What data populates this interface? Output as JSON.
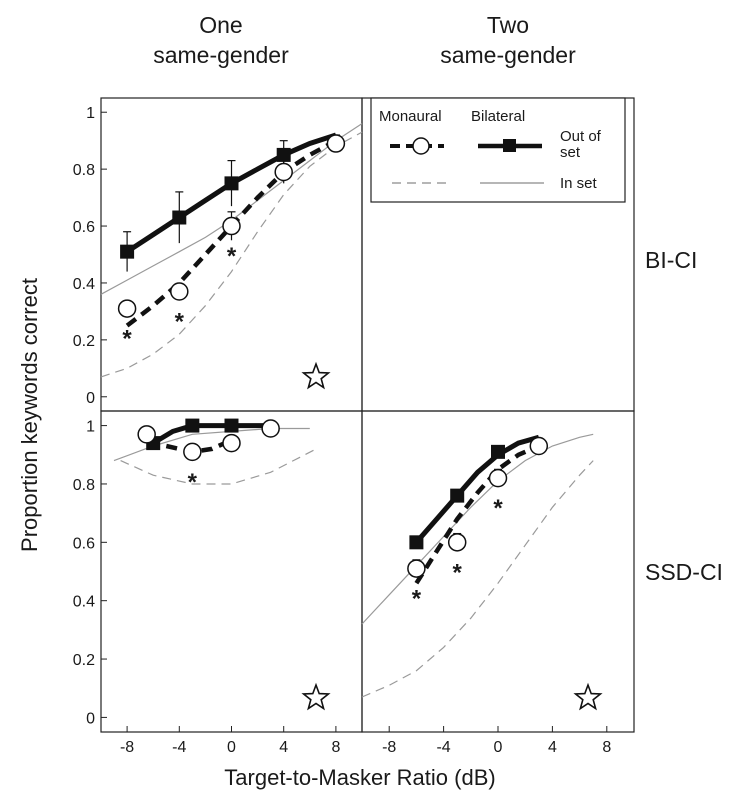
{
  "column_titles": [
    {
      "line1": "One",
      "line2": "same-gender"
    },
    {
      "line1": "Two",
      "line2": "same-gender"
    }
  ],
  "row_labels": [
    "BI-CI",
    "SSD-CI"
  ],
  "xlabel": "Target-to-Masker Ratio (dB)",
  "ylabel": "Proportion keywords correct",
  "legend": {
    "monaural": "Monaural",
    "bilateral": "Bilateral",
    "out_of_set_line1": "Out of",
    "out_of_set_line2": "set",
    "in_set": "In set"
  },
  "x_ticks": [
    "-8",
    "-4",
    "0",
    "4",
    "8"
  ],
  "y_ticks": [
    "0",
    "0.2",
    "0.4",
    "0.6",
    "0.8",
    "1"
  ],
  "significance_marker": "*",
  "colors": {
    "line": "#111111",
    "light": "#9a9a9a",
    "marker_fill": "#ffffff"
  },
  "chart_data": [
    {
      "type": "line",
      "panel": "BI-CI, One same-gender",
      "xlim": [
        -10,
        10
      ],
      "ylim": [
        -0.05,
        1.05
      ],
      "series": [
        {
          "name": "Bilateral",
          "set": "Out of set",
          "marker": "square",
          "x": [
            -8,
            -4,
            0,
            4
          ],
          "y": [
            0.51,
            0.63,
            0.75,
            0.85
          ],
          "err": [
            0.07,
            0.09,
            0.08,
            0.05
          ],
          "fit_x": [
            -8,
            -6,
            -4,
            -2,
            0,
            2,
            4,
            6,
            8
          ],
          "fit_y": [
            0.51,
            0.57,
            0.63,
            0.69,
            0.75,
            0.8,
            0.85,
            0.89,
            0.92
          ]
        },
        {
          "name": "Monaural",
          "set": "Out of set",
          "marker": "circle",
          "x": [
            -8,
            -4,
            0,
            4,
            8
          ],
          "y": [
            0.31,
            0.37,
            0.6,
            0.79,
            0.89
          ],
          "err": [
            0,
            0,
            0.05,
            0.04,
            0.03
          ],
          "fit_x": [
            -8,
            -6,
            -4,
            -2,
            0,
            2,
            4,
            6,
            8
          ],
          "fit_y": [
            0.25,
            0.32,
            0.4,
            0.5,
            0.6,
            0.7,
            0.79,
            0.85,
            0.9
          ]
        },
        {
          "name": "Bilateral",
          "set": "In set",
          "fit_x": [
            -10,
            -8,
            -6,
            -4,
            -2,
            0,
            2,
            4,
            6,
            8,
            10
          ],
          "fit_y": [
            0.36,
            0.41,
            0.46,
            0.51,
            0.56,
            0.62,
            0.69,
            0.76,
            0.83,
            0.9,
            0.96
          ]
        },
        {
          "name": "Monaural",
          "set": "In set",
          "fit_x": [
            -10,
            -8,
            -6,
            -4,
            -2,
            0,
            2,
            4,
            6,
            8,
            10
          ],
          "fit_y": [
            0.07,
            0.1,
            0.15,
            0.22,
            0.32,
            0.44,
            0.58,
            0.71,
            0.81,
            0.88,
            0.93
          ]
        }
      ],
      "significant_x": [
        -8,
        -4,
        0
      ]
    },
    {
      "type": "line",
      "panel": "SSD-CI, One same-gender",
      "xlim": [
        -10,
        10
      ],
      "ylim": [
        -0.05,
        1.05
      ],
      "series": [
        {
          "name": "Bilateral",
          "set": "Out of set",
          "marker": "square",
          "x": [
            -6,
            -3,
            0
          ],
          "y": [
            0.94,
            1.0,
            1.0
          ],
          "err": [
            0,
            0,
            0
          ],
          "fit_x": [
            -6,
            -4.5,
            -3,
            -1.5,
            0,
            2,
            3.5
          ],
          "fit_y": [
            0.94,
            0.98,
            1.0,
            1.0,
            1.0,
            1.0,
            1.0
          ]
        },
        {
          "name": "Monaural",
          "set": "Out of set",
          "marker": "circle",
          "x": [
            -6.5,
            -3,
            0,
            3
          ],
          "y": [
            0.97,
            0.91,
            0.94,
            0.99
          ],
          "err": [
            0,
            0,
            0,
            0
          ],
          "fit_x": [
            -5,
            -3,
            -1.5,
            0
          ],
          "fit_y": [
            0.93,
            0.91,
            0.92,
            0.95
          ]
        },
        {
          "name": "Bilateral",
          "set": "In set",
          "fit_x": [
            -9,
            -6,
            -3,
            0,
            3,
            6
          ],
          "fit_y": [
            0.88,
            0.93,
            0.97,
            0.98,
            0.99,
            0.99
          ]
        },
        {
          "name": "Monaural",
          "set": "In set",
          "fit_x": [
            -8.5,
            -6,
            -3,
            0,
            3,
            6.5
          ],
          "fit_y": [
            0.88,
            0.83,
            0.8,
            0.8,
            0.84,
            0.92
          ]
        }
      ],
      "significant_x": [
        -3
      ]
    },
    {
      "type": "line",
      "panel": "SSD-CI, Two same-gender",
      "xlim": [
        -10,
        10
      ],
      "ylim": [
        -0.05,
        1.05
      ],
      "series": [
        {
          "name": "Bilateral",
          "set": "Out of set",
          "marker": "square",
          "x": [
            -6,
            -3,
            0
          ],
          "y": [
            0.6,
            0.76,
            0.91
          ],
          "err": [
            0,
            0,
            0.02
          ],
          "fit_x": [
            -6,
            -4.5,
            -3,
            -1.5,
            0,
            1.5,
            3
          ],
          "fit_y": [
            0.6,
            0.68,
            0.76,
            0.84,
            0.9,
            0.94,
            0.96
          ]
        },
        {
          "name": "Monaural",
          "set": "Out of set",
          "marker": "circle",
          "x": [
            -6,
            -3,
            0,
            3
          ],
          "y": [
            0.51,
            0.6,
            0.82,
            0.93
          ],
          "err": [
            0.03,
            0.03,
            0.03,
            0.02
          ],
          "fit_x": [
            -6,
            -4.5,
            -3,
            -1.5,
            0,
            1.5,
            3
          ],
          "fit_y": [
            0.46,
            0.57,
            0.68,
            0.77,
            0.85,
            0.9,
            0.93
          ]
        },
        {
          "name": "Bilateral",
          "set": "In set",
          "fit_x": [
            -10,
            -8,
            -6,
            -4,
            -2,
            0,
            2,
            4,
            6,
            7
          ],
          "fit_y": [
            0.32,
            0.42,
            0.52,
            0.62,
            0.72,
            0.81,
            0.88,
            0.93,
            0.96,
            0.97
          ]
        },
        {
          "name": "Monaural",
          "set": "In set",
          "fit_x": [
            -10,
            -8,
            -6,
            -4,
            -2,
            0,
            2,
            4,
            6,
            7
          ],
          "fit_y": [
            0.07,
            0.11,
            0.16,
            0.24,
            0.34,
            0.46,
            0.59,
            0.72,
            0.83,
            0.88
          ]
        }
      ],
      "significant_x": [
        -6,
        -3,
        0
      ]
    }
  ]
}
